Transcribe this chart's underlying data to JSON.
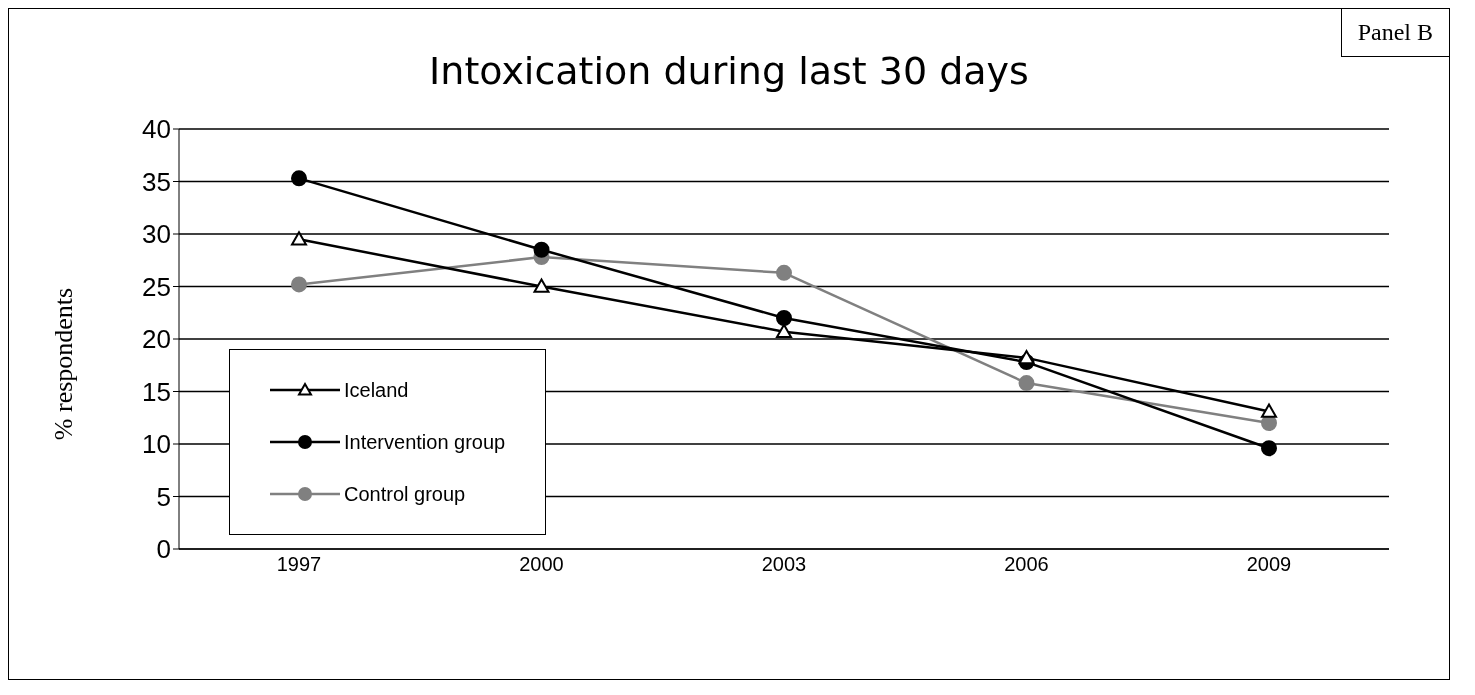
{
  "chart_data": {
    "type": "line",
    "title": "Intoxication during last 30 days",
    "ylabel": "% respondents",
    "categories": [
      "1997",
      "2000",
      "2003",
      "2006",
      "2009"
    ],
    "series": [
      {
        "name": "Iceland",
        "color": "#000000",
        "marker": "triangle",
        "values": [
          29.5,
          25.0,
          20.7,
          18.2,
          13.1
        ]
      },
      {
        "name": "Intervention group",
        "color": "#000000",
        "marker": "circle",
        "values": [
          35.3,
          28.5,
          22.0,
          17.8,
          9.6
        ]
      },
      {
        "name": "Control group",
        "color": "#808080",
        "marker": "circle",
        "values": [
          25.2,
          27.8,
          26.3,
          15.8,
          12.0
        ]
      }
    ],
    "ylim": [
      0,
      40
    ],
    "yticks": [
      0,
      5,
      10,
      15,
      20,
      25,
      30,
      35,
      40
    ],
    "grid": "y",
    "legend": "bottom left",
    "annotations": [
      "Panel B"
    ]
  }
}
